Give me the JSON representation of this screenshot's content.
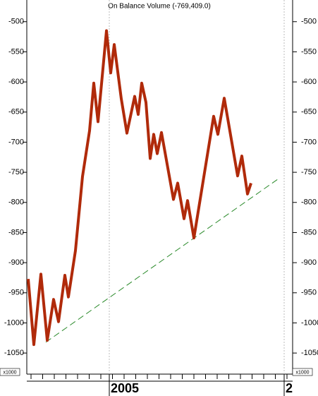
{
  "chart_data": {
    "type": "line",
    "title": "On Balance Volume (-769,409.0)",
    "y_unit_label": "x1000",
    "x": [
      2,
      10,
      20,
      29,
      38,
      45,
      54,
      59,
      69,
      79,
      89,
      95,
      101,
      113,
      119,
      124,
      134,
      142,
      153,
      158,
      163,
      169,
      175,
      180,
      185,
      191,
      208,
      214,
      223,
      228,
      237,
      265,
      271,
      280,
      299,
      305,
      313,
      318
    ],
    "series": [
      {
        "color": "#b02a0a",
        "values": [
          -927,
          -1036,
          -919,
          -1029,
          -961,
          -998,
          -921,
          -957,
          -880,
          -757,
          -681,
          -602,
          -666,
          -515,
          -585,
          -538,
          -628,
          -685,
          -624,
          -654,
          -602,
          -634,
          -727,
          -687,
          -719,
          -684,
          -795,
          -768,
          -827,
          -797,
          -859,
          -657,
          -687,
          -627,
          -756,
          -723,
          -786,
          -768
        ]
      }
    ],
    "trendline": {
      "x": [
        27,
        359
      ],
      "values": [
        -1032,
        -759
      ],
      "color": "#2a8a2a"
    },
    "xlim": [
      0,
      377
    ],
    "xticks": [
      {
        "value": 117,
        "label": "2005"
      },
      {
        "value": 365,
        "label": "2"
      }
    ],
    "ylim": [
      -1085,
      -464
    ],
    "yticks": [
      -500,
      -550,
      -600,
      -650,
      -700,
      -750,
      -800,
      -850,
      -900,
      -950,
      -1000,
      -1050
    ],
    "grid": true
  }
}
